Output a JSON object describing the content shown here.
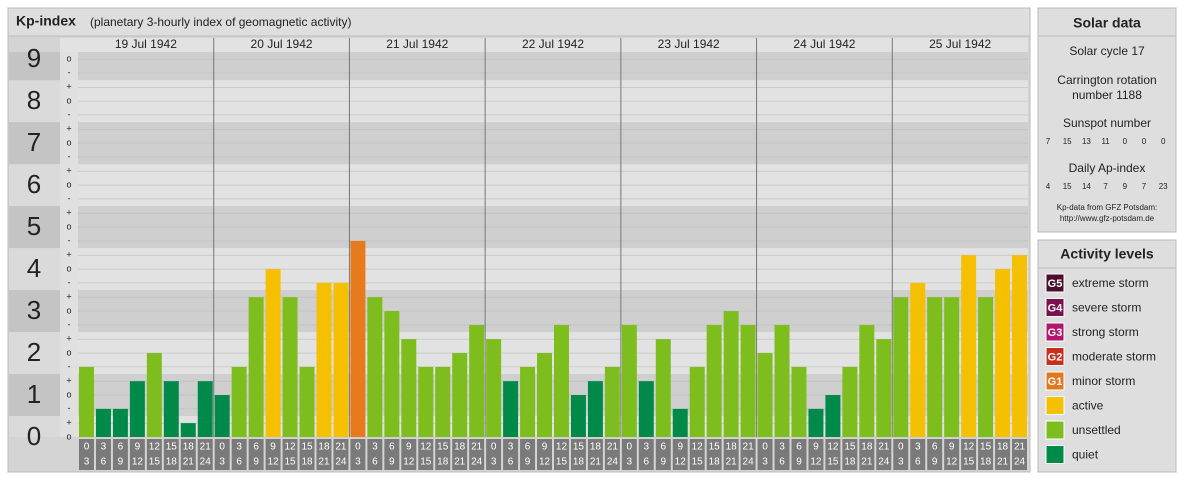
{
  "chart_data": {
    "type": "bar",
    "title": "Kp-index",
    "subtitle": "(planetary 3-hourly index of geomagnetic activity)",
    "ylim": [
      0,
      9.17
    ],
    "yticks": [
      0,
      1,
      2,
      3,
      4,
      5,
      6,
      7,
      8,
      9
    ],
    "subticks": [
      {
        "value": 0,
        "label": "o"
      },
      {
        "value": 0.33,
        "label": "+"
      },
      {
        "value": 0.67,
        "label": "-"
      },
      {
        "value": 1,
        "label": "o"
      },
      {
        "value": 1.33,
        "label": "+"
      },
      {
        "value": 1.67,
        "label": "-"
      },
      {
        "value": 2,
        "label": "o"
      },
      {
        "value": 2.33,
        "label": "+"
      },
      {
        "value": 2.67,
        "label": "-"
      },
      {
        "value": 3,
        "label": "o"
      },
      {
        "value": 3.33,
        "label": "+"
      },
      {
        "value": 3.67,
        "label": "-"
      },
      {
        "value": 4,
        "label": "o"
      },
      {
        "value": 4.33,
        "label": "+"
      },
      {
        "value": 4.67,
        "label": "-"
      },
      {
        "value": 5,
        "label": "o"
      },
      {
        "value": 5.33,
        "label": "+"
      },
      {
        "value": 5.67,
        "label": "-"
      },
      {
        "value": 6,
        "label": "o"
      },
      {
        "value": 6.33,
        "label": "+"
      },
      {
        "value": 6.67,
        "label": "-"
      },
      {
        "value": 7,
        "label": "o"
      },
      {
        "value": 7.33,
        "label": "+"
      },
      {
        "value": 7.67,
        "label": "-"
      },
      {
        "value": 8,
        "label": "o"
      },
      {
        "value": 8.33,
        "label": "+"
      },
      {
        "value": 8.67,
        "label": "-"
      },
      {
        "value": 9,
        "label": "o"
      }
    ],
    "hours": [
      [
        "0",
        "3"
      ],
      [
        "3",
        "6"
      ],
      [
        "6",
        "9"
      ],
      [
        "9",
        "12"
      ],
      [
        "12",
        "15"
      ],
      [
        "15",
        "18"
      ],
      [
        "18",
        "21"
      ],
      [
        "21",
        "24"
      ]
    ],
    "days": [
      {
        "date": "19 Jul 1942",
        "values": [
          1.67,
          0.67,
          0.67,
          1.33,
          2,
          1.33,
          0.33,
          1.33
        ],
        "colors": [
          "#7dbd1e",
          "#008a4a",
          "#008a4a",
          "#008a4a",
          "#7dbd1e",
          "#008a4a",
          "#008a4a",
          "#008a4a"
        ]
      },
      {
        "date": "20 Jul 1942",
        "values": [
          1,
          1.67,
          3.33,
          4,
          3.33,
          1.67,
          3.67,
          3.67
        ],
        "colors": [
          "#008a4a",
          "#7dbd1e",
          "#7dbd1e",
          "#f5c000",
          "#7dbd1e",
          "#7dbd1e",
          "#f5c000",
          "#f5c000"
        ]
      },
      {
        "date": "21 Jul 1942",
        "values": [
          4.67,
          3.33,
          3,
          2.33,
          1.67,
          1.67,
          2,
          2.67
        ],
        "colors": [
          "#e87a1e",
          "#7dbd1e",
          "#7dbd1e",
          "#7dbd1e",
          "#7dbd1e",
          "#7dbd1e",
          "#7dbd1e",
          "#7dbd1e"
        ]
      },
      {
        "date": "22 Jul 1942",
        "values": [
          2.33,
          1.33,
          1.67,
          2,
          2.67,
          1,
          1.33,
          1.67
        ],
        "colors": [
          "#7dbd1e",
          "#008a4a",
          "#7dbd1e",
          "#7dbd1e",
          "#7dbd1e",
          "#008a4a",
          "#008a4a",
          "#7dbd1e"
        ]
      },
      {
        "date": "23 Jul 1942",
        "values": [
          2.67,
          1.33,
          2.33,
          0.67,
          1.67,
          2.67,
          3,
          2.67
        ],
        "colors": [
          "#7dbd1e",
          "#008a4a",
          "#7dbd1e",
          "#008a4a",
          "#7dbd1e",
          "#7dbd1e",
          "#7dbd1e",
          "#7dbd1e"
        ]
      },
      {
        "date": "24 Jul 1942",
        "values": [
          2,
          2.67,
          1.67,
          0.67,
          1,
          1.67,
          2.67,
          2.33
        ],
        "colors": [
          "#7dbd1e",
          "#7dbd1e",
          "#7dbd1e",
          "#008a4a",
          "#008a4a",
          "#7dbd1e",
          "#7dbd1e",
          "#7dbd1e"
        ]
      },
      {
        "date": "25 Jul 1942",
        "values": [
          3.33,
          3.67,
          3.33,
          3.33,
          4.33,
          3.33,
          4,
          4.33
        ],
        "colors": [
          "#7dbd1e",
          "#f5c000",
          "#7dbd1e",
          "#7dbd1e",
          "#f5c000",
          "#7dbd1e",
          "#f5c000",
          "#f5c000"
        ]
      }
    ]
  },
  "solar_data": {
    "title": "Solar data",
    "cycle": "Solar cycle 17",
    "carrington": [
      "Carrington rotation",
      "number 1188"
    ],
    "sunspot_title": "Sunspot number",
    "sunspot": [
      7,
      15,
      13,
      11,
      0,
      0,
      0
    ],
    "ap_title": "Daily Ap-index",
    "ap": [
      4,
      15,
      14,
      7,
      9,
      7,
      23
    ],
    "source": "Kp-data from GFZ Potsdam:",
    "url": "http://www.gfz-potsdam.de"
  },
  "activity_levels": {
    "title": "Activity levels",
    "levels": [
      {
        "badge": "G5",
        "label": "extreme storm",
        "color": "#4a0d2e"
      },
      {
        "badge": "G4",
        "label": "severe storm",
        "color": "#7a1050"
      },
      {
        "badge": "G3",
        "label": "strong storm",
        "color": "#b0166a"
      },
      {
        "badge": "G2",
        "label": "moderate storm",
        "color": "#c8301e"
      },
      {
        "badge": "G1",
        "label": "minor storm",
        "color": "#e07820"
      },
      {
        "badge": null,
        "label": "active",
        "color": "#f5c000"
      },
      {
        "badge": null,
        "label": "unsettled",
        "color": "#7dbd1e"
      },
      {
        "badge": null,
        "label": "quiet",
        "color": "#008a4a"
      }
    ]
  }
}
